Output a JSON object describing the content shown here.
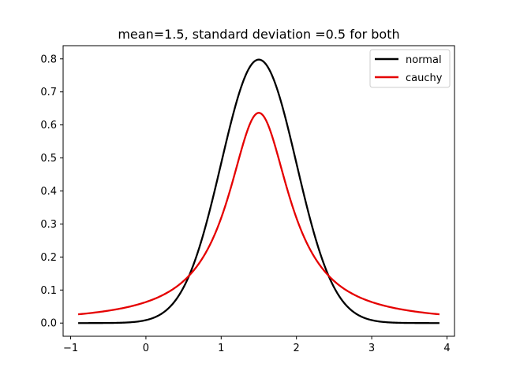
{
  "chart_data": {
    "type": "line",
    "title": "mean=1.5, standard deviation =0.5 for both",
    "xlabel": "",
    "ylabel": "",
    "xlim": [
      -1.1,
      4.1
    ],
    "ylim": [
      -0.04,
      0.84
    ],
    "xticks": [
      -1,
      0,
      1,
      2,
      3,
      4
    ],
    "xtick_labels": [
      "−1",
      "0",
      "1",
      "2",
      "3",
      "4"
    ],
    "yticks": [
      0.0,
      0.1,
      0.2,
      0.3,
      0.4,
      0.5,
      0.6,
      0.7,
      0.8
    ],
    "ytick_labels": [
      "0.0",
      "0.1",
      "0.2",
      "0.3",
      "0.4",
      "0.5",
      "0.6",
      "0.7",
      "0.8"
    ],
    "grid": false,
    "legend_position": "top-right",
    "series": [
      {
        "name": "normal",
        "color": "#000000",
        "distribution": "normal",
        "mean": 1.5,
        "std": 0.5,
        "x_range": [
          -0.9,
          3.9
        ],
        "peak": 0.798
      },
      {
        "name": "cauchy",
        "color": "#e50000",
        "distribution": "cauchy",
        "location": 1.5,
        "scale": 0.5,
        "x_range": [
          -0.9,
          3.9
        ],
        "peak": 0.637
      }
    ]
  }
}
